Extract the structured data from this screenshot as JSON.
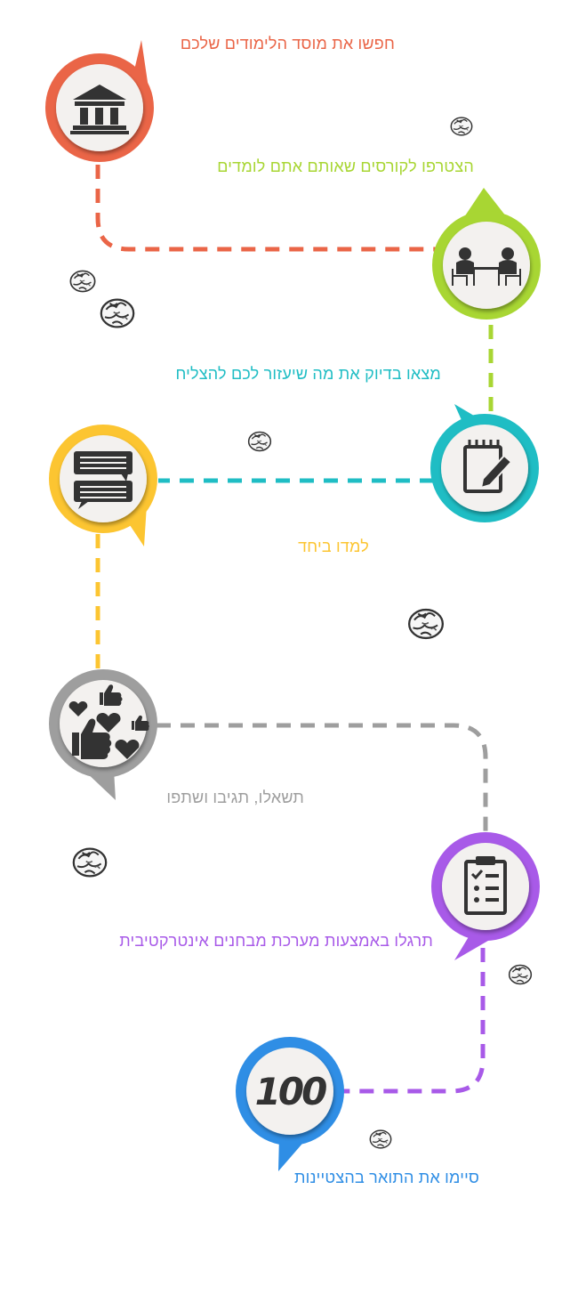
{
  "colors": {
    "step1": "#ea6547",
    "step2": "#a8d633",
    "step3": "#1fbdc4",
    "step4": "#fcc531",
    "step5": "#9e9e9e",
    "step6": "#a85ae8",
    "step7": "#2f8ee5",
    "icon": "#3a3a3a",
    "disc": "#f3f1ef"
  },
  "steps": [
    {
      "text": "חפשו את מוסד הלימודים שלכם",
      "icon": "institution-icon"
    },
    {
      "text": "הצטרפו לקורסים שאותם אתם לומדים",
      "icon": "students-at-table-icon"
    },
    {
      "text": "מצאו בדיוק את מה שיעזור לכם להצליח",
      "icon": "notepad-pencil-icon"
    },
    {
      "text": "למדו ביחד",
      "icon": "chat-bubbles-icon"
    },
    {
      "text": "תשאלו, תגיבו ושתפו",
      "icon": "likes-hearts-icon"
    },
    {
      "text": "תרגלו באמצעות מערכת מבחנים אינטרקטיבית",
      "icon": "checklist-clipboard-icon"
    },
    {
      "text": "סיימו את התואר בהצטיינות",
      "icon": "score-100-icon",
      "badge": "100"
    }
  ]
}
